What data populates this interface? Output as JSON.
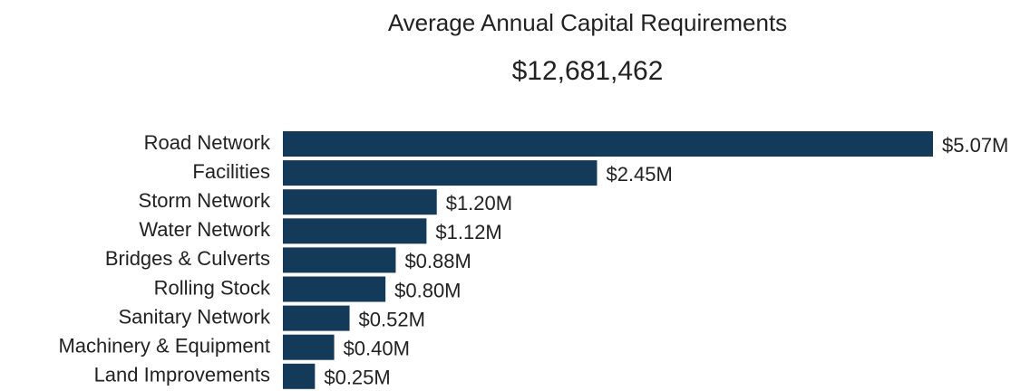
{
  "chart_data": {
    "type": "barh",
    "title": "Average Annual Capital Requirements",
    "subtitle": "$12,681,462",
    "categories": [
      "Road Network",
      "Facilities",
      "Storm Network",
      "Water Network",
      "Bridges & Culverts",
      "Rolling Stock",
      "Sanitary Network",
      "Machinery & Equipment",
      "Land Improvements"
    ],
    "values": [
      5.07,
      2.45,
      1.2,
      1.12,
      0.88,
      0.8,
      0.52,
      0.4,
      0.25
    ],
    "value_labels": [
      "$5.07M",
      "$2.45M",
      "$1.20M",
      "$1.12M",
      "$0.88M",
      "$0.80M",
      "$0.52M",
      "$0.40M",
      "$0.25M"
    ],
    "color": "#143a5a"
  }
}
